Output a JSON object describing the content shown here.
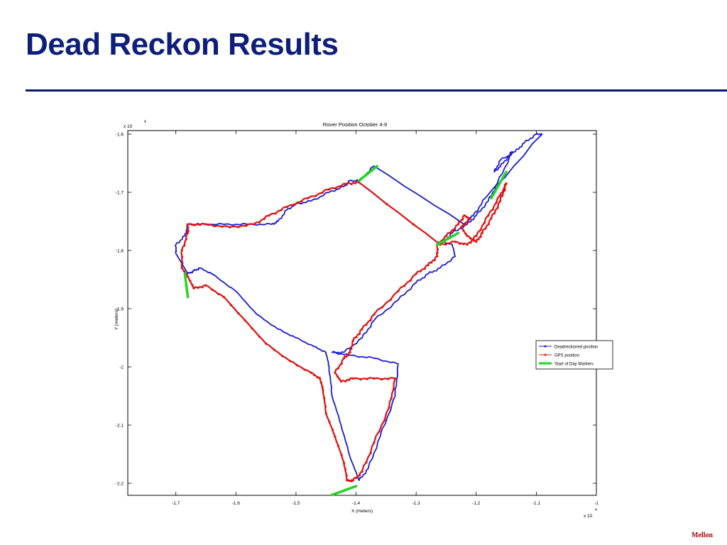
{
  "slide": {
    "title": "Dead Reckon Results",
    "footer": "Mellon",
    "title_color": "#0d1f7a",
    "rule_color": "#0a1670",
    "footer_color": "#b00000"
  },
  "chart_data": {
    "type": "line",
    "title": "Rover Position October 4-9",
    "xlabel": "X (meters)",
    "ylabel": "Y (meters)",
    "x_multiplier_label": "x 10",
    "x_multiplier_exp": "4",
    "y_multiplier_label": "x 10",
    "y_multiplier_exp": "4",
    "xlim": [
      -1.78,
      -1.0
    ],
    "ylim": [
      -2.22,
      -1.6
    ],
    "y_reversed": true,
    "grid": false,
    "legend_position": "right",
    "xticks": [
      -1.7,
      -1.6,
      -1.5,
      -1.4,
      -1.3,
      -1.2,
      -1.1,
      -1.0
    ],
    "xtick_labels": [
      "-1.7",
      "-1.6",
      "-1.5",
      "-1.4",
      "-1.3",
      "-1.2",
      "-1.1",
      "-1"
    ],
    "yticks": [
      -1.6,
      -1.7,
      -1.8,
      -1.9,
      -2.0,
      -2.1,
      -2.2
    ],
    "ytick_labels": [
      "-1.6",
      "-1.7",
      "-1.8",
      "-1.9",
      "-2",
      "-2.1",
      "-2.2"
    ],
    "series": [
      {
        "name": "Deadreckoned position",
        "color": "#1a1ad6",
        "marker": "dot",
        "points": [
          [
            -1.09,
            -1.6
          ],
          [
            -1.1,
            -1.6
          ],
          [
            -1.12,
            -1.615
          ],
          [
            -1.135,
            -1.63
          ],
          [
            -1.16,
            -1.645
          ],
          [
            -1.17,
            -1.665
          ],
          [
            -1.155,
            -1.65
          ],
          [
            -1.14,
            -1.63
          ],
          [
            -1.165,
            -1.685
          ],
          [
            -1.18,
            -1.715
          ],
          [
            -1.2,
            -1.74
          ],
          [
            -1.215,
            -1.755
          ],
          [
            -1.24,
            -1.77
          ],
          [
            -1.255,
            -1.785
          ],
          [
            -1.24,
            -1.79
          ],
          [
            -1.235,
            -1.81
          ],
          [
            -1.26,
            -1.83
          ],
          [
            -1.28,
            -1.84
          ],
          [
            -1.3,
            -1.855
          ],
          [
            -1.33,
            -1.885
          ],
          [
            -1.37,
            -1.92
          ],
          [
            -1.39,
            -1.95
          ],
          [
            -1.42,
            -1.975
          ],
          [
            -1.44,
            -1.975
          ],
          [
            -1.41,
            -1.98
          ],
          [
            -1.37,
            -1.985
          ],
          [
            -1.33,
            -1.995
          ],
          [
            -1.335,
            -2.05
          ],
          [
            -1.36,
            -2.12
          ],
          [
            -1.38,
            -2.175
          ],
          [
            -1.395,
            -2.195
          ],
          [
            -1.41,
            -2.155
          ],
          [
            -1.425,
            -2.1
          ],
          [
            -1.44,
            -2.05
          ],
          [
            -1.445,
            -2.0
          ],
          [
            -1.45,
            -1.975
          ],
          [
            -1.47,
            -1.965
          ],
          [
            -1.5,
            -1.95
          ],
          [
            -1.53,
            -1.935
          ],
          [
            -1.565,
            -1.91
          ],
          [
            -1.6,
            -1.87
          ],
          [
            -1.64,
            -1.84
          ],
          [
            -1.66,
            -1.83
          ],
          [
            -1.67,
            -1.835
          ],
          [
            -1.68,
            -1.84
          ],
          [
            -1.7,
            -1.805
          ],
          [
            -1.7,
            -1.79
          ],
          [
            -1.685,
            -1.775
          ],
          [
            -1.68,
            -1.755
          ],
          [
            -1.66,
            -1.755
          ],
          [
            -1.62,
            -1.755
          ],
          [
            -1.58,
            -1.755
          ],
          [
            -1.54,
            -1.755
          ],
          [
            -1.53,
            -1.75
          ],
          [
            -1.515,
            -1.73
          ],
          [
            -1.5,
            -1.72
          ],
          [
            -1.475,
            -1.715
          ],
          [
            -1.445,
            -1.7
          ],
          [
            -1.42,
            -1.69
          ],
          [
            -1.41,
            -1.68
          ],
          [
            -1.395,
            -1.68
          ],
          [
            -1.37,
            -1.655
          ],
          [
            -1.22,
            -1.755
          ],
          [
            -1.205,
            -1.74
          ],
          [
            -1.185,
            -1.71
          ],
          [
            -1.09,
            -1.6
          ]
        ]
      },
      {
        "name": "GPS position",
        "color": "#e01010",
        "marker": "star",
        "points": [
          [
            -1.15,
            -1.685
          ],
          [
            -1.16,
            -1.715
          ],
          [
            -1.175,
            -1.745
          ],
          [
            -1.19,
            -1.77
          ],
          [
            -1.2,
            -1.785
          ],
          [
            -1.215,
            -1.775
          ],
          [
            -1.225,
            -1.76
          ],
          [
            -1.21,
            -1.745
          ],
          [
            -1.22,
            -1.74
          ],
          [
            -1.23,
            -1.755
          ],
          [
            -1.25,
            -1.775
          ],
          [
            -1.265,
            -1.79
          ],
          [
            -1.265,
            -1.81
          ],
          [
            -1.28,
            -1.825
          ],
          [
            -1.3,
            -1.84
          ],
          [
            -1.33,
            -1.87
          ],
          [
            -1.37,
            -1.91
          ],
          [
            -1.39,
            -1.935
          ],
          [
            -1.405,
            -1.955
          ],
          [
            -1.41,
            -1.975
          ],
          [
            -1.42,
            -1.985
          ],
          [
            -1.435,
            -2.01
          ],
          [
            -1.425,
            -2.025
          ],
          [
            -1.405,
            -2.02
          ],
          [
            -1.37,
            -2.02
          ],
          [
            -1.335,
            -2.02
          ],
          [
            -1.345,
            -2.07
          ],
          [
            -1.37,
            -2.13
          ],
          [
            -1.39,
            -2.18
          ],
          [
            -1.405,
            -2.195
          ],
          [
            -1.415,
            -2.195
          ],
          [
            -1.42,
            -2.165
          ],
          [
            -1.435,
            -2.12
          ],
          [
            -1.45,
            -2.08
          ],
          [
            -1.455,
            -2.04
          ],
          [
            -1.46,
            -2.02
          ],
          [
            -1.475,
            -2.01
          ],
          [
            -1.51,
            -1.99
          ],
          [
            -1.55,
            -1.96
          ],
          [
            -1.585,
            -1.92
          ],
          [
            -1.62,
            -1.88
          ],
          [
            -1.65,
            -1.86
          ],
          [
            -1.67,
            -1.865
          ],
          [
            -1.68,
            -1.845
          ],
          [
            -1.69,
            -1.83
          ],
          [
            -1.69,
            -1.8
          ],
          [
            -1.68,
            -1.77
          ],
          [
            -1.68,
            -1.755
          ],
          [
            -1.65,
            -1.755
          ],
          [
            -1.61,
            -1.76
          ],
          [
            -1.57,
            -1.755
          ],
          [
            -1.545,
            -1.74
          ],
          [
            -1.515,
            -1.725
          ],
          [
            -1.48,
            -1.71
          ],
          [
            -1.445,
            -1.695
          ],
          [
            -1.415,
            -1.685
          ],
          [
            -1.395,
            -1.683
          ],
          [
            -1.26,
            -1.79
          ],
          [
            -1.235,
            -1.785
          ],
          [
            -1.215,
            -1.79
          ],
          [
            -1.2,
            -1.775
          ],
          [
            -1.18,
            -1.74
          ],
          [
            -1.16,
            -1.705
          ],
          [
            -1.15,
            -1.685
          ]
        ]
      },
      {
        "name": "Start of Day Markers",
        "color": "#1fd61f",
        "marker": "none",
        "segments": [
          [
            [
              -1.395,
              -1.68
            ],
            [
              -1.365,
              -1.655
            ]
          ],
          [
            [
              -1.265,
              -1.79
            ],
            [
              -1.23,
              -1.77
            ]
          ],
          [
            [
              -1.175,
              -1.71
            ],
            [
              -1.15,
              -1.665
            ]
          ],
          [
            [
              -1.685,
              -1.84
            ],
            [
              -1.68,
              -1.88
            ]
          ],
          [
            [
              -1.44,
              -2.22
            ],
            [
              -1.4,
              -2.205
            ]
          ]
        ]
      }
    ]
  }
}
